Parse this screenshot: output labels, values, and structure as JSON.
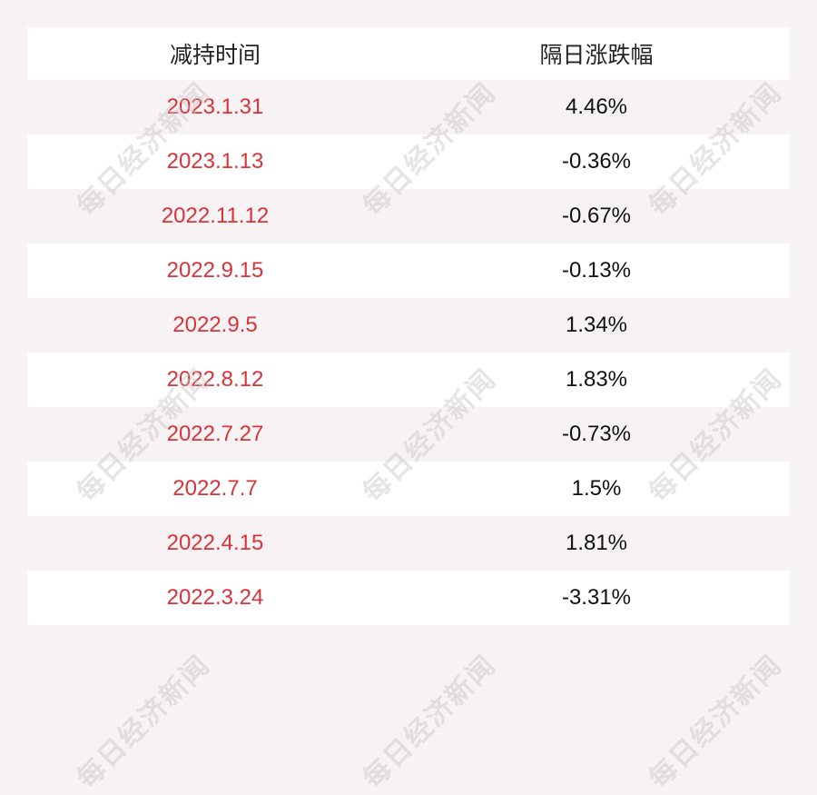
{
  "watermark": "每日经济新闻",
  "colors": {
    "date_text": "#d9333a",
    "background": "#f7f3f4"
  },
  "chart_data": {
    "type": "table",
    "columns": [
      "减持时间",
      "隔日涨跌幅"
    ],
    "rows": [
      [
        "2023.1.31",
        "4.46%"
      ],
      [
        "2023.1.13",
        "-0.36%"
      ],
      [
        "2022.11.12",
        "-0.67%"
      ],
      [
        "2022.9.15",
        "-0.13%"
      ],
      [
        "2022.9.5",
        "1.34%"
      ],
      [
        "2022.8.12",
        "1.83%"
      ],
      [
        "2022.7.27",
        "-0.73%"
      ],
      [
        "2022.7.7",
        "1.5%"
      ],
      [
        "2022.4.15",
        "1.81%"
      ],
      [
        "2022.3.24",
        "-3.31%"
      ]
    ]
  }
}
